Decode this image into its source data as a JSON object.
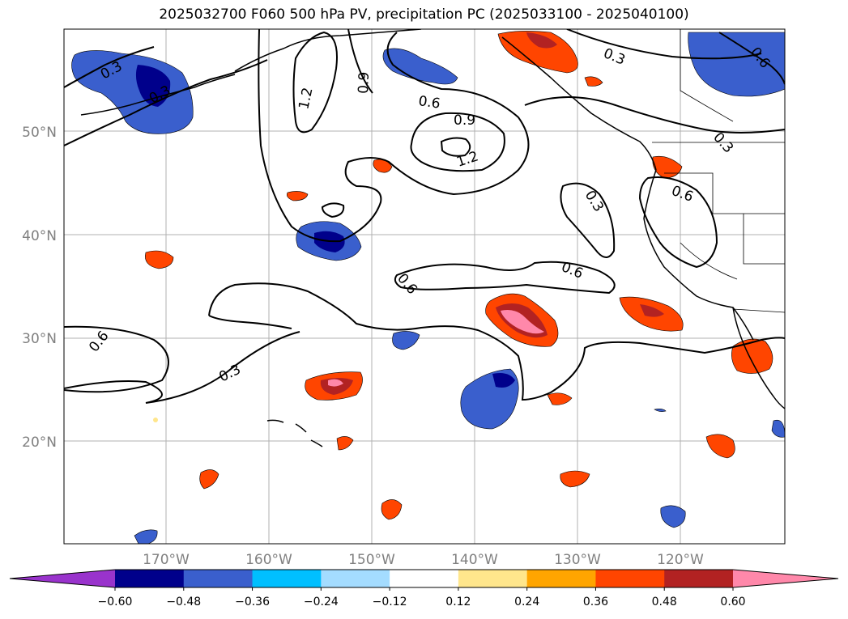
{
  "title": "2025032700 F060 500 hPa PV, precipitation PC (2025033100 - 2025040100)",
  "map": {
    "lat_labels": [
      "50°N",
      "40°N",
      "30°N",
      "20°N"
    ],
    "lon_labels": [
      "170°W",
      "160°W",
      "150°W",
      "140°W",
      "130°W",
      "120°W"
    ]
  },
  "contour_labels": [
    {
      "text": "0.3",
      "anchor": "west-alaska"
    },
    {
      "text": "0.3",
      "anchor": "west-alaska-inner"
    },
    {
      "text": "1.2",
      "anchor": "bering-trough"
    },
    {
      "text": "0.9",
      "anchor": "bering-trough"
    },
    {
      "text": "0.6",
      "anchor": "gulf-alaska"
    },
    {
      "text": "0.9",
      "anchor": "gulf-alaska-low"
    },
    {
      "text": "1.2",
      "anchor": "gulf-alaska-low"
    },
    {
      "text": "0.3",
      "anchor": "alaska-panhandle"
    },
    {
      "text": "0.6",
      "anchor": "northeast-corner"
    },
    {
      "text": "0.3",
      "anchor": "pacific-northwest"
    },
    {
      "text": "0.6",
      "anchor": "pacific-northwest"
    },
    {
      "text": "0.3",
      "anchor": "offshore-oregon"
    },
    {
      "text": "0.6",
      "anchor": "central-pacific"
    },
    {
      "text": "0.6",
      "anchor": "central-pacific"
    },
    {
      "text": "0.6",
      "anchor": "west-edge"
    },
    {
      "text": "0.3",
      "anchor": "subtropical"
    }
  ],
  "colorbar": {
    "colors": [
      "#9933cc",
      "#00008b",
      "#3a5fcd",
      "#00bfff",
      "#a4dcff",
      "#ffffff",
      "#ffe68c",
      "#ffa500",
      "#ff4500",
      "#b22222",
      "#ff88aa"
    ],
    "tick_labels": [
      "−0.60",
      "−0.48",
      "−0.36",
      "−0.24",
      "−0.12",
      "0.12",
      "0.24",
      "0.36",
      "0.48",
      "0.60"
    ]
  }
}
